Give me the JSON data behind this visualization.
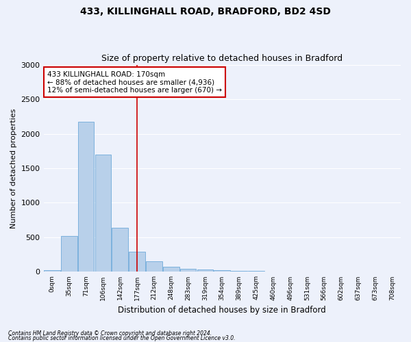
{
  "title1": "433, KILLINGHALL ROAD, BRADFORD, BD2 4SD",
  "title2": "Size of property relative to detached houses in Bradford",
  "xlabel": "Distribution of detached houses by size in Bradford",
  "ylabel": "Number of detached properties",
  "bin_labels": [
    "0sqm",
    "35sqm",
    "71sqm",
    "106sqm",
    "142sqm",
    "177sqm",
    "212sqm",
    "248sqm",
    "283sqm",
    "319sqm",
    "354sqm",
    "389sqm",
    "425sqm",
    "460sqm",
    "496sqm",
    "531sqm",
    "566sqm",
    "602sqm",
    "637sqm",
    "673sqm",
    "708sqm"
  ],
  "bar_values": [
    25,
    520,
    2175,
    1700,
    640,
    290,
    150,
    75,
    40,
    30,
    20,
    15,
    10,
    5,
    5,
    3,
    2,
    2,
    2,
    2,
    2
  ],
  "bar_color": "#b8d0ea",
  "bar_edge_color": "#5a9fd4",
  "vline_x": 5.0,
  "vline_color": "#cc0000",
  "annotation_text": "433 KILLINGHALL ROAD: 170sqm\n← 88% of detached houses are smaller (4,936)\n12% of semi-detached houses are larger (670) →",
  "annotation_box_color": "white",
  "annotation_box_edge": "#cc0000",
  "ylim": [
    0,
    3000
  ],
  "yticks": [
    0,
    500,
    1000,
    1500,
    2000,
    2500,
    3000
  ],
  "footer1": "Contains HM Land Registry data © Crown copyright and database right 2024.",
  "footer2": "Contains public sector information licensed under the Open Government Licence v3.0.",
  "bg_color": "#edf1fb",
  "grid_color": "white"
}
